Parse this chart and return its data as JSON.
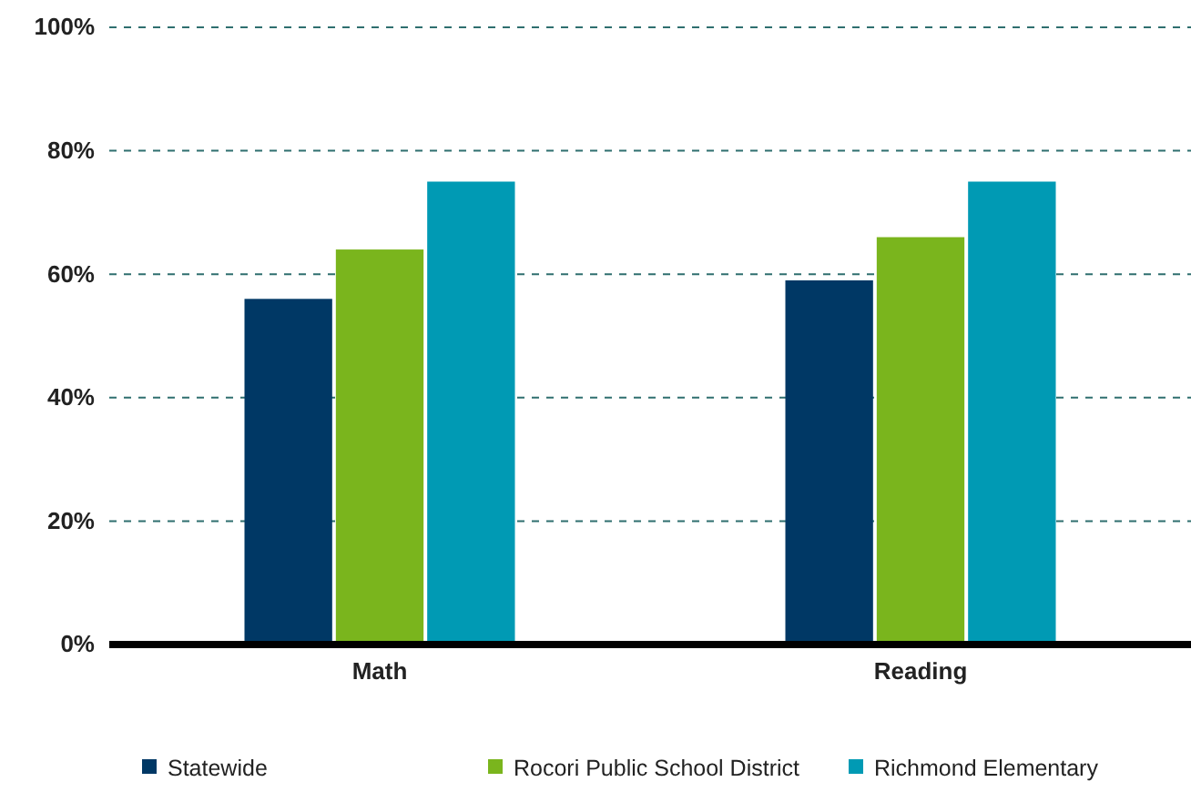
{
  "chart_data": {
    "type": "bar",
    "categories": [
      "Math",
      "Reading"
    ],
    "series": [
      {
        "name": "Statewide",
        "color": "#003865",
        "values": [
          56,
          59
        ]
      },
      {
        "name": "Rocori Public School District",
        "color": "#7ab51d",
        "values": [
          64,
          66
        ]
      },
      {
        "name": "Richmond Elementary",
        "color": "#009ab4",
        "values": [
          75,
          75
        ]
      }
    ],
    "ylim": [
      0,
      100
    ],
    "yticks": [
      {
        "value": 0,
        "label": "0%"
      },
      {
        "value": 20,
        "label": "20%"
      },
      {
        "value": 40,
        "label": "40%"
      },
      {
        "value": 60,
        "label": "60%"
      },
      {
        "value": 80,
        "label": "80%"
      },
      {
        "value": 100,
        "label": "100%"
      }
    ],
    "grid": "y",
    "legend": "bottom"
  }
}
